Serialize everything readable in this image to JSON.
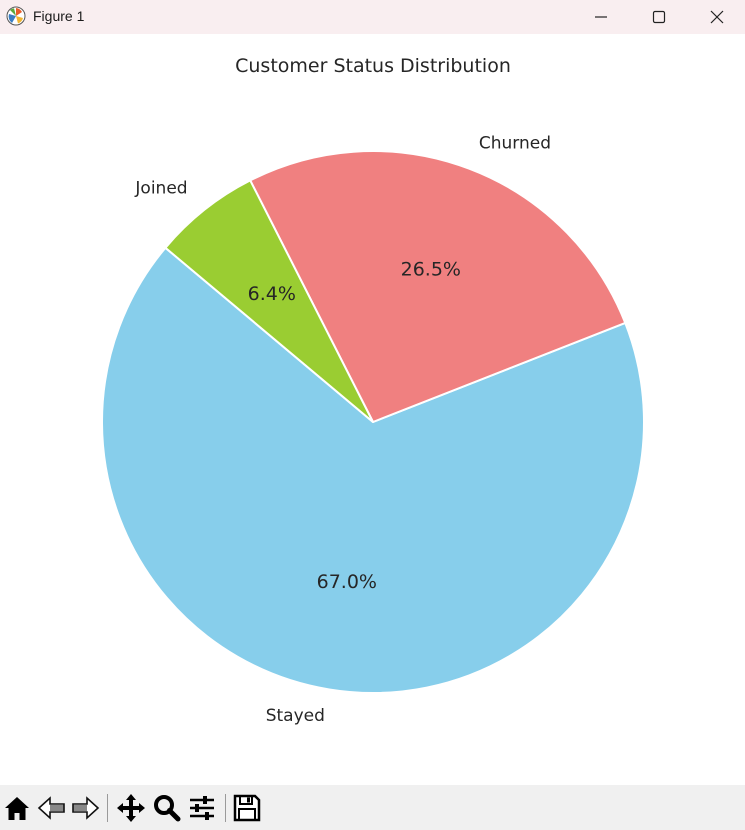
{
  "window": {
    "title": "Figure 1"
  },
  "toolbar": {
    "tools": [
      "home-icon",
      "back-arrow-icon",
      "forward-arrow-icon",
      "pan-move-icon",
      "zoom-magnifier-icon",
      "configure-subplots-icon",
      "save-floppy-icon"
    ]
  },
  "chart_data": {
    "type": "pie",
    "title": "Customer Status Distribution",
    "labels": [
      "Stayed",
      "Churned",
      "Joined"
    ],
    "values": [
      67.0,
      26.5,
      6.4
    ],
    "autopct": [
      "67.0%",
      "26.5%",
      "6.4%"
    ],
    "colors": [
      "#87ceeb",
      "#f08080",
      "#9acd32"
    ],
    "start_angle_deg": 140,
    "direction": "counterclockwise",
    "wedge_edge_color": "#ffffff"
  }
}
